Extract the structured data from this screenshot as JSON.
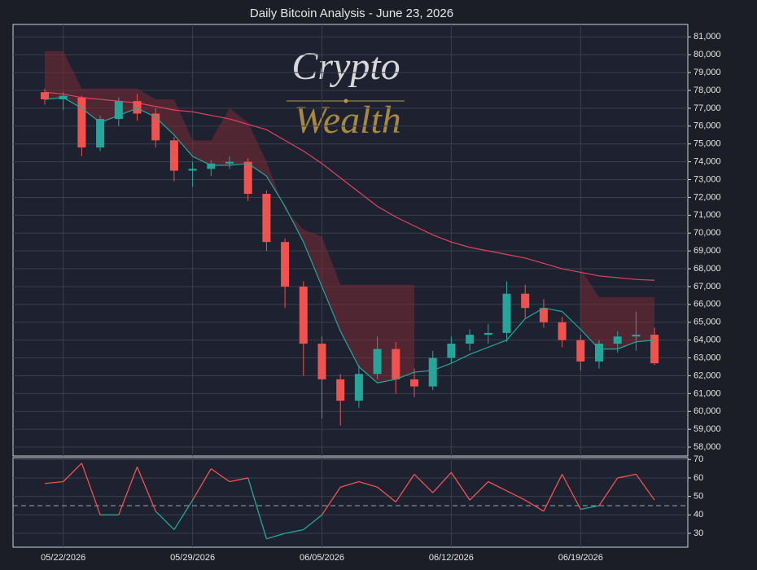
{
  "chart_data": {
    "type": "candlestick",
    "title": "Daily Bitcoin Analysis - June 23, 2026",
    "watermark": [
      "Crypto",
      "Wealth"
    ],
    "x": [
      "05/21/2026",
      "05/22/2026",
      "05/23/2026",
      "05/24/2026",
      "05/25/2026",
      "05/26/2026",
      "05/27/2026",
      "05/28/2026",
      "05/29/2026",
      "05/30/2026",
      "05/31/2026",
      "06/01/2026",
      "06/02/2026",
      "06/03/2026",
      "06/04/2026",
      "06/05/2026",
      "06/06/2026",
      "06/07/2026",
      "06/08/2026",
      "06/09/2026",
      "06/10/2026",
      "06/11/2026",
      "06/12/2026",
      "06/13/2026",
      "06/14/2026",
      "06/15/2026",
      "06/16/2026",
      "06/17/2026",
      "06/18/2026",
      "06/19/2026",
      "06/20/2026",
      "06/21/2026",
      "06/22/2026",
      "06/23/2026"
    ],
    "xticks": [
      "05/22/2026",
      "05/29/2026",
      "06/05/2026",
      "06/12/2026",
      "06/19/2026"
    ],
    "open": [
      77900,
      77500,
      77600,
      74800,
      76400,
      77400,
      76700,
      75200,
      73500,
      73600,
      73900,
      74000,
      72200,
      69500,
      67000,
      63800,
      61800,
      60600,
      62100,
      63500,
      61800,
      61400,
      63000,
      63800,
      64300,
      64400,
      66600,
      65800,
      65000,
      64000,
      62800,
      63800,
      64200,
      64300
    ],
    "high": [
      78100,
      77900,
      77700,
      76600,
      77600,
      77800,
      77000,
      75400,
      74000,
      74100,
      74300,
      74200,
      72400,
      69700,
      67300,
      64200,
      62100,
      62600,
      64200,
      63900,
      62400,
      63400,
      64200,
      64600,
      64900,
      67300,
      67100,
      66300,
      65300,
      64300,
      64000,
      64500,
      65600,
      64700
    ],
    "low": [
      77200,
      76900,
      74300,
      74600,
      76000,
      76300,
      74800,
      72900,
      72600,
      73200,
      73600,
      71800,
      69000,
      65800,
      62000,
      59600,
      59200,
      60200,
      61800,
      61000,
      60800,
      61200,
      62700,
      63400,
      63800,
      63900,
      65200,
      64700,
      63600,
      62300,
      62400,
      63300,
      63400,
      62600
    ],
    "close": [
      77500,
      77700,
      74800,
      76400,
      77400,
      76700,
      75200,
      73500,
      73600,
      73900,
      74000,
      72200,
      69500,
      67000,
      63800,
      61800,
      60600,
      62100,
      63500,
      61800,
      61400,
      63000,
      63800,
      64300,
      64400,
      66600,
      65800,
      65000,
      64000,
      62800,
      63800,
      64200,
      64300,
      62700
    ],
    "up_color": "#26a69a",
    "down_color": "#ef5350",
    "ma_fast": {
      "color": "#26a69a",
      "values": [
        77500,
        77600,
        77000,
        76200,
        76600,
        77000,
        76500,
        75500,
        74300,
        73800,
        73800,
        73900,
        73200,
        71500,
        69500,
        67000,
        64500,
        62500,
        61600,
        61800,
        62200,
        62300,
        62700,
        63200,
        63600,
        64000,
        65200,
        65800,
        65600,
        64600,
        63500,
        63500,
        63900,
        64000
      ]
    },
    "ma_slow": {
      "color": "#e0445a",
      "values": [
        77900,
        77800,
        77600,
        77500,
        77400,
        77300,
        77100,
        76900,
        76800,
        76600,
        76400,
        76100,
        75800,
        75200,
        74600,
        73900,
        73100,
        72300,
        71500,
        70900,
        70400,
        69900,
        69500,
        69200,
        69000,
        68800,
        68600,
        68300,
        68000,
        67800,
        67600,
        67500,
        67400,
        67350
      ]
    },
    "band_upper": {
      "color": "#7a2a36",
      "values": [
        80200,
        80200,
        78100,
        78100,
        78100,
        78100,
        77500,
        77500,
        75200,
        75200,
        77000,
        76200,
        74000,
        71300,
        70200,
        69800,
        67100,
        67100,
        67100,
        67100,
        67100,
        null,
        null,
        null,
        null,
        null,
        null,
        null,
        null,
        68000,
        66400,
        66400,
        66400,
        66400
      ]
    },
    "ylim": [
      57500,
      81700
    ],
    "yticks": [
      {
        "value": 58000,
        "label": "58,000"
      },
      {
        "value": 59000,
        "label": "59,000"
      },
      {
        "value": 60000,
        "label": "60,000"
      },
      {
        "value": 61000,
        "label": "61,000"
      },
      {
        "value": 62000,
        "label": "62,000"
      },
      {
        "value": 63000,
        "label": "63,000"
      },
      {
        "value": 64000,
        "label": "64,000"
      },
      {
        "value": 65000,
        "label": "65,000"
      },
      {
        "value": 66000,
        "label": "66,000"
      },
      {
        "value": 67000,
        "label": "67,000"
      },
      {
        "value": 68000,
        "label": "68,000"
      },
      {
        "value": 69000,
        "label": "69,000"
      },
      {
        "value": 70000,
        "label": "70,000"
      },
      {
        "value": 71000,
        "label": "71,000"
      },
      {
        "value": 72000,
        "label": "72,000"
      },
      {
        "value": 73000,
        "label": "73,000"
      },
      {
        "value": 74000,
        "label": "74,000"
      },
      {
        "value": 75000,
        "label": "75,000"
      },
      {
        "value": 76000,
        "label": "76,000"
      },
      {
        "value": 77000,
        "label": "77,000"
      },
      {
        "value": 78000,
        "label": "78,000"
      },
      {
        "value": 79000,
        "label": "79,000"
      },
      {
        "value": 80000,
        "label": "80,000"
      },
      {
        "value": 81000,
        "label": "81,000"
      }
    ],
    "rsi": {
      "values": [
        57,
        58,
        68,
        40,
        40,
        66,
        42,
        32,
        48,
        65,
        58,
        60,
        27,
        30,
        32,
        40,
        55,
        58,
        55,
        47,
        62,
        52,
        63,
        48,
        58,
        53,
        48,
        42,
        62,
        43,
        45,
        60,
        62,
        48
      ],
      "level": 45,
      "above_color": "#ef5350",
      "below_color": "#26a69a"
    },
    "rsi_ylim": [
      22.5,
      71
    ],
    "rsi_yticks": [
      30,
      40,
      50,
      60,
      70
    ],
    "grid": true
  }
}
